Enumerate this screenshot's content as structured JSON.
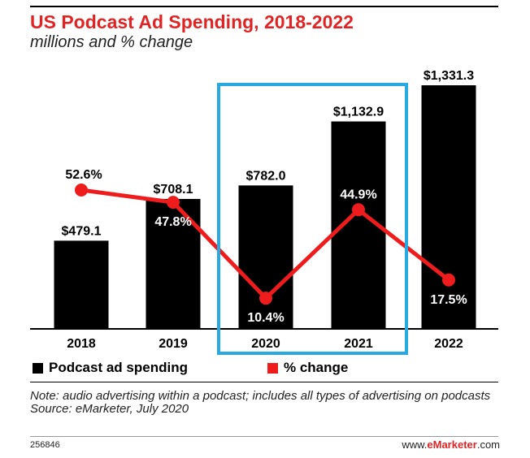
{
  "title": "US Podcast Ad Spending, 2018-2022",
  "subtitle": "millions and % change",
  "chart_data": {
    "type": "bar",
    "categories": [
      "2018",
      "2019",
      "2020",
      "2021",
      "2022"
    ],
    "series": [
      {
        "name": "Podcast ad spending",
        "type": "bar",
        "values": [
          479.1,
          708.1,
          782.0,
          1132.9,
          1331.3
        ],
        "labels": [
          "$479.1",
          "$708.1",
          "$782.0",
          "$1,132.9",
          "$1,331.3"
        ]
      },
      {
        "name": "% change",
        "type": "line",
        "values": [
          52.6,
          47.8,
          10.4,
          44.9,
          17.5
        ],
        "labels": [
          "52.6%",
          "47.8%",
          "10.4%",
          "44.9%",
          "17.5%"
        ]
      }
    ],
    "ylim": [
      0,
      1331.3
    ],
    "pct_ylim": [
      0,
      60
    ],
    "highlight_categories": [
      "2020",
      "2021"
    ]
  },
  "legend": {
    "bar": "Podcast ad spending",
    "line": "% change"
  },
  "note": "Note: audio advertising within a podcast; includes all types of advertising on podcasts",
  "source": "Source: eMarketer, July 2020",
  "chart_id": "256846",
  "brand": {
    "prefix": "www.",
    "bold": "eMarketer",
    "suffix": ".com"
  },
  "colors": {
    "title": "#e02424",
    "bar": "#000000",
    "line": "#ee1c1c",
    "highlight": "#27a9e1"
  }
}
